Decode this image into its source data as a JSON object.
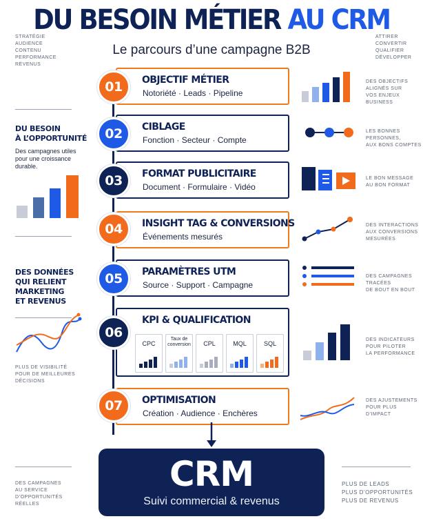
{
  "header": {
    "title_part1": "DU BESOIN MÉTIER",
    "title_part2": "AU CRM",
    "subtitle": "Le parcours d’une campagne B2B"
  },
  "left": {
    "top_list": [
      "STRATÉGIE",
      "AUDIENCE",
      "CONTENU",
      "PERFORMANCE",
      "REVENUS"
    ],
    "block1_head_1": "DU BESOIN",
    "block1_head_2": "À L’OPPORTUNITÉ",
    "block1_body_1": "Des campagnes utiles",
    "block1_body_2": "pour une croissance",
    "block1_body_3": "durable.",
    "block1_bars": [
      18,
      30,
      43,
      62
    ],
    "block2_head_1": "DES DONNÉES",
    "block2_head_2": "QUI RELIENT",
    "block2_head_3": "MARKETING",
    "block2_head_4": "ET REVENUS",
    "block2_note_1": "PLUS DE VISIBILITÉ",
    "block2_note_2": "POUR DE MEILLEURES",
    "block2_note_3": "DÉCISIONS",
    "bottom_1": "DES CAMPAGNES",
    "bottom_2": "AU SERVICE",
    "bottom_3": "D’OPPORTUNITÉS",
    "bottom_4": "RÉELLES"
  },
  "right": {
    "top_list": [
      "ATTIRER",
      "CONVERTIR",
      "QUALIFIER",
      "DÉVELOPPER"
    ],
    "notes": [
      [
        "DES OBJECTIFS",
        "ALIGNÉS SUR",
        "VOS ENJEUX",
        "BUSINESS"
      ],
      [
        "LES BONNES",
        "PERSONNES,",
        "AUX BONS COMPTES"
      ],
      [
        "LE BON MESSAGE",
        "AU BON FORMAT"
      ],
      [
        "DES INTERACTIONS",
        "AUX CONVERSIONS",
        "MESURÉES"
      ],
      [
        "DES CAMPAGNES",
        "TRACÉES",
        "DE BOUT EN BOUT"
      ],
      [
        "DES INDICATEURS",
        "POUR PILOTER",
        "LA PERFORMANCE"
      ],
      [
        "DES AJUSTEMENTS",
        "POUR PLUS",
        "D’IMPACT"
      ]
    ],
    "bottom_1": "PLUS DE LEADS",
    "bottom_2": "PLUS D’OPPORTUNITÉS",
    "bottom_3": "PLUS DE REVENUS"
  },
  "steps": [
    {
      "num": "01",
      "title": "OBJECTIF MÉTIER",
      "sub": "Notoriété · Leads · Pipeline"
    },
    {
      "num": "02",
      "title": "CIBLAGE",
      "sub": "Fonction · Secteur · Compte"
    },
    {
      "num": "03",
      "title": "FORMAT PUBLICITAIRE",
      "sub": "Document · Formulaire · Vidéo"
    },
    {
      "num": "04",
      "title": "INSIGHT TAG & CONVERSIONS",
      "sub": "Événements mesurés"
    },
    {
      "num": "05",
      "title": "PARAMÈTRES UTM",
      "sub": "Source · Support · Campagne"
    },
    {
      "num": "06",
      "title": "KPI & QUALIFICATION",
      "sub": ""
    },
    {
      "num": "07",
      "title": "OPTIMISATION",
      "sub": "Création · Audience · Enchères"
    }
  ],
  "kpis": [
    {
      "label": "CPC",
      "label2": ""
    },
    {
      "label": "Taux de",
      "label2": "conversion"
    },
    {
      "label": "CPL",
      "label2": ""
    },
    {
      "label": "MQL",
      "label2": ""
    },
    {
      "label": "SQL",
      "label2": ""
    }
  ],
  "crm": {
    "title": "CRM",
    "sub": "Suivi commercial & revenus"
  },
  "colors": {
    "navy": "#0f2255",
    "blue": "#1e5ae6",
    "orange": "#f26b1d",
    "grey": "#c7ccd6",
    "lightblue": "#8fb2ee"
  }
}
